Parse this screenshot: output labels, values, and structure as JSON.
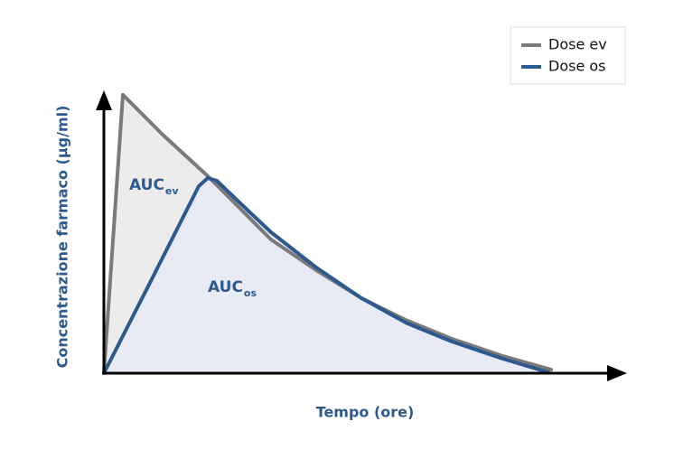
{
  "chart_data": {
    "type": "line",
    "x_label": "Tempo (ore)",
    "y_label": "Concentrazione farmaco (µg/ml)",
    "xlim": [
      0,
      11
    ],
    "ylim": [
      0,
      10.5
    ],
    "legend": "top-right",
    "series": [
      {
        "name": "Dose ev",
        "color": "#7a7a7a",
        "fill": "#ececec",
        "x": [
          0,
          0.42,
          1.3,
          2.3,
          3.0,
          3.7,
          4.7,
          5.7,
          6.7,
          7.7,
          8.8,
          9.9
        ],
        "values": [
          0,
          10.27,
          8.8,
          7.27,
          6.1,
          4.93,
          3.8,
          2.77,
          1.95,
          1.27,
          0.65,
          0.13
        ]
      },
      {
        "name": "Dose os",
        "color": "#2d5a8e",
        "fill": "#e8eaf5",
        "x": [
          0,
          1.1,
          2.1,
          2.3,
          2.5,
          3.0,
          3.7,
          4.7,
          5.7,
          6.7,
          7.7,
          8.8,
          9.84
        ],
        "values": [
          0,
          3.6,
          6.9,
          7.2,
          7.1,
          6.3,
          5.2,
          3.9,
          2.77,
          1.85,
          1.17,
          0.55,
          0.03
        ]
      }
    ],
    "annotations": [
      {
        "text": "AUC",
        "sub": "ev"
      },
      {
        "text": "AUC",
        "sub": "os"
      }
    ]
  }
}
